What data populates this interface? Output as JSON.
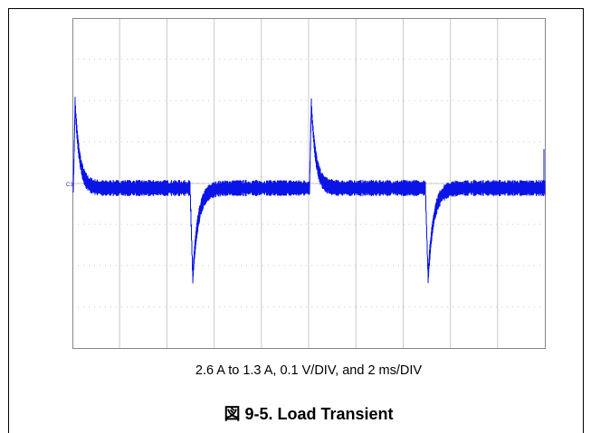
{
  "figure": {
    "channel_label": "C3",
    "caption": "2.6 A to 1.3 A, 0.1 V/DIV, and 2 ms/DIV",
    "title": "図 9-5. Load Transient"
  }
}
